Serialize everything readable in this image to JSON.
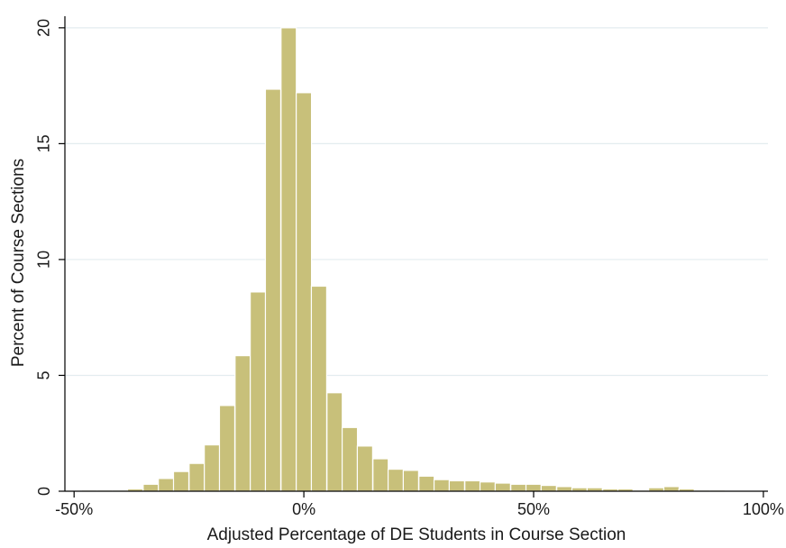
{
  "chart_data": {
    "type": "bar",
    "title": "",
    "xlabel": "Adjusted Percentage of DE Students in Course Section",
    "ylabel": "Percent of Course Sections",
    "x_tick_labels": [
      {
        "value": -50,
        "label": "-50%"
      },
      {
        "value": 0,
        "label": "0%"
      },
      {
        "value": 50,
        "label": "50%"
      },
      {
        "value": 100,
        "label": "100%"
      }
    ],
    "y_tick_labels": [
      {
        "value": 0,
        "label": "0"
      },
      {
        "value": 5,
        "label": "5"
      },
      {
        "value": 10,
        "label": "10"
      },
      {
        "value": 15,
        "label": "15"
      },
      {
        "value": 20,
        "label": "20"
      }
    ],
    "xlim": [
      -52,
      101
    ],
    "ylim": [
      0,
      20.5
    ],
    "grid": true,
    "bar_color": "#c8c07a",
    "bar_edge_color": "#ffffff",
    "bin_width": 3.33,
    "bins": [
      {
        "x": -46.7,
        "y": 0.05
      },
      {
        "x": -43.3,
        "y": 0.05
      },
      {
        "x": -40.0,
        "y": 0.05
      },
      {
        "x": -36.7,
        "y": 0.1
      },
      {
        "x": -33.3,
        "y": 0.3
      },
      {
        "x": -30.0,
        "y": 0.55
      },
      {
        "x": -26.7,
        "y": 0.85
      },
      {
        "x": -23.3,
        "y": 1.2
      },
      {
        "x": -20.0,
        "y": 2.0
      },
      {
        "x": -16.7,
        "y": 3.7
      },
      {
        "x": -13.3,
        "y": 5.85
      },
      {
        "x": -10.0,
        "y": 8.6
      },
      {
        "x": -6.7,
        "y": 17.35
      },
      {
        "x": -3.3,
        "y": 20.0
      },
      {
        "x": 0.0,
        "y": 17.2
      },
      {
        "x": 3.3,
        "y": 8.85
      },
      {
        "x": 6.7,
        "y": 4.25
      },
      {
        "x": 10.0,
        "y": 2.75
      },
      {
        "x": 13.3,
        "y": 1.95
      },
      {
        "x": 16.7,
        "y": 1.4
      },
      {
        "x": 20.0,
        "y": 0.95
      },
      {
        "x": 23.3,
        "y": 0.9
      },
      {
        "x": 26.7,
        "y": 0.65
      },
      {
        "x": 30.0,
        "y": 0.5
      },
      {
        "x": 33.3,
        "y": 0.45
      },
      {
        "x": 36.7,
        "y": 0.45
      },
      {
        "x": 40.0,
        "y": 0.4
      },
      {
        "x": 43.3,
        "y": 0.35
      },
      {
        "x": 46.7,
        "y": 0.3
      },
      {
        "x": 50.0,
        "y": 0.3
      },
      {
        "x": 53.3,
        "y": 0.25
      },
      {
        "x": 56.7,
        "y": 0.2
      },
      {
        "x": 60.0,
        "y": 0.15
      },
      {
        "x": 63.3,
        "y": 0.15
      },
      {
        "x": 66.7,
        "y": 0.1
      },
      {
        "x": 70.0,
        "y": 0.1
      },
      {
        "x": 73.3,
        "y": 0.05
      },
      {
        "x": 76.7,
        "y": 0.15
      },
      {
        "x": 80.0,
        "y": 0.2
      },
      {
        "x": 83.3,
        "y": 0.1
      },
      {
        "x": 86.7,
        "y": 0.05
      },
      {
        "x": 90.0,
        "y": 0.05
      }
    ]
  }
}
